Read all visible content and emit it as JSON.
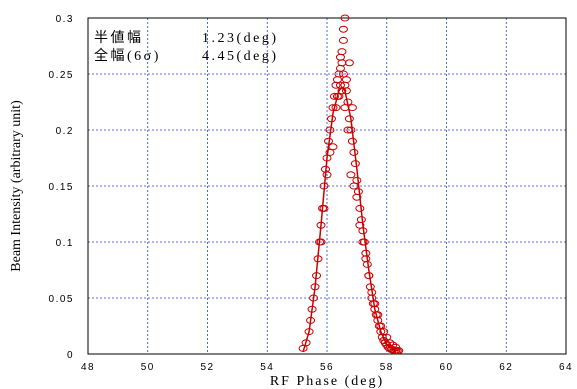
{
  "chart_data": {
    "type": "scatter",
    "title": "",
    "xlabel": "RF Phase (deg)",
    "ylabel": "Beam Intensity (arbitrary unit)",
    "xlim": [
      48,
      64
    ],
    "ylim": [
      0,
      0.3
    ],
    "x_ticks": [
      48,
      50,
      52,
      54,
      56,
      58,
      60,
      62,
      64
    ],
    "x_tick_labels": [
      "48",
      "50",
      "52",
      "54",
      "56",
      "58",
      "60",
      "62",
      "64"
    ],
    "y_ticks": [
      0,
      0.05,
      0.1,
      0.15,
      0.2,
      0.25,
      0.3
    ],
    "y_tick_labels": [
      "0",
      "0.05",
      "0.1",
      "0.15",
      "0.2",
      "0.25",
      "0.3"
    ],
    "grid": true,
    "annotations": [
      {
        "label": "半値幅",
        "value": "1.23(deg)"
      },
      {
        "label": "全幅(6σ)",
        "value": "4.45(deg)"
      }
    ],
    "series": [
      {
        "kind": "markers",
        "color": "#cc0000",
        "x": [
          55.2,
          55.3,
          55.4,
          55.45,
          55.5,
          55.55,
          55.6,
          55.65,
          55.7,
          55.75,
          55.8,
          55.85,
          55.9,
          55.95,
          56.0,
          56.05,
          56.1,
          56.15,
          56.2,
          56.25,
          56.3,
          56.35,
          56.4,
          56.45,
          56.5,
          56.55,
          56.6,
          56.65,
          56.7,
          56.75,
          56.8,
          56.85,
          56.9,
          56.95,
          57.0,
          57.05,
          57.1,
          57.15,
          57.2,
          57.25,
          57.3,
          57.35,
          57.4,
          57.45,
          57.5,
          57.55,
          57.6,
          57.65,
          57.7,
          57.75,
          57.8,
          57.85,
          57.9,
          57.95,
          58.0,
          58.05,
          58.1,
          58.15,
          58.2,
          58.25,
          58.3,
          58.35,
          58.4,
          56.3,
          56.4,
          56.5,
          56.6,
          56.7,
          56.2,
          56.5,
          56.55,
          56.8,
          56.35,
          56.45,
          56.9,
          56.1,
          56.0,
          55.9,
          55.8,
          57.0,
          57.1,
          57.2,
          57.3,
          57.4,
          57.5,
          57.6,
          57.7,
          57.8,
          57.9,
          58.0,
          58.1,
          58.2,
          58.3,
          56.45,
          56.6,
          56.75,
          56.85,
          56.65,
          56.55
        ],
        "y": [
          0.005,
          0.01,
          0.02,
          0.03,
          0.04,
          0.05,
          0.06,
          0.07,
          0.085,
          0.1,
          0.115,
          0.13,
          0.15,
          0.165,
          0.175,
          0.19,
          0.2,
          0.21,
          0.22,
          0.23,
          0.24,
          0.245,
          0.25,
          0.255,
          0.26,
          0.25,
          0.24,
          0.235,
          0.225,
          0.21,
          0.2,
          0.19,
          0.18,
          0.17,
          0.155,
          0.145,
          0.13,
          0.12,
          0.11,
          0.1,
          0.09,
          0.08,
          0.07,
          0.06,
          0.05,
          0.045,
          0.04,
          0.035,
          0.03,
          0.025,
          0.02,
          0.015,
          0.012,
          0.01,
          0.008,
          0.006,
          0.005,
          0.004,
          0.004,
          0.003,
          0.003,
          0.003,
          0.003,
          0.22,
          0.23,
          0.235,
          0.22,
          0.2,
          0.185,
          0.27,
          0.28,
          0.16,
          0.23,
          0.265,
          0.15,
          0.18,
          0.16,
          0.13,
          0.1,
          0.14,
          0.115,
          0.1,
          0.085,
          0.07,
          0.055,
          0.045,
          0.035,
          0.025,
          0.02,
          0.015,
          0.01,
          0.008,
          0.006,
          0.24,
          0.3,
          0.26,
          0.22,
          0.245,
          0.29
        ]
      },
      {
        "kind": "line",
        "color": "#cc0000",
        "x": [
          55.2,
          55.4,
          55.6,
          55.8,
          56.0,
          56.2,
          56.4,
          56.5,
          56.6,
          56.8,
          57.0,
          57.2,
          57.4,
          57.6,
          57.8,
          58.0,
          58.2,
          58.4
        ],
        "y": [
          0.002,
          0.02,
          0.06,
          0.115,
          0.175,
          0.215,
          0.235,
          0.238,
          0.235,
          0.21,
          0.165,
          0.115,
          0.075,
          0.04,
          0.02,
          0.008,
          0.004,
          0.003
        ]
      }
    ]
  }
}
